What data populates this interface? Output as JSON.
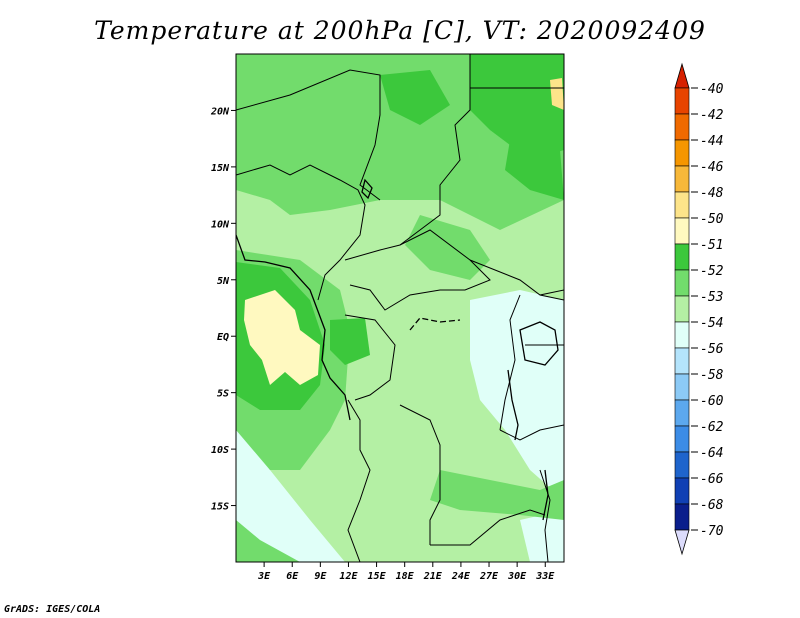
{
  "title": "Temperature at 200hPa [C], VT: 2020092409",
  "credit": "GrADS: IGES/COLA",
  "map": {
    "lon_range": [
      0,
      35
    ],
    "lat_range": [
      -20,
      25
    ],
    "lat_ticks": [
      {
        "value": 20,
        "label": "20N"
      },
      {
        "value": 15,
        "label": "15N"
      },
      {
        "value": 10,
        "label": "10N"
      },
      {
        "value": 5,
        "label": "5N"
      },
      {
        "value": 0,
        "label": "EQ"
      },
      {
        "value": -5,
        "label": "5S"
      },
      {
        "value": -10,
        "label": "10S"
      },
      {
        "value": -15,
        "label": "15S"
      }
    ],
    "lon_ticks": [
      {
        "value": 3,
        "label": "3E"
      },
      {
        "value": 6,
        "label": "6E"
      },
      {
        "value": 9,
        "label": "9E"
      },
      {
        "value": 12,
        "label": "12E"
      },
      {
        "value": 15,
        "label": "15E"
      },
      {
        "value": 18,
        "label": "18E"
      },
      {
        "value": 21,
        "label": "21E"
      },
      {
        "value": 24,
        "label": "24E"
      },
      {
        "value": 27,
        "label": "27E"
      },
      {
        "value": 30,
        "label": "30E"
      },
      {
        "value": 33,
        "label": "33E"
      }
    ]
  },
  "colorbar": {
    "labels": [
      "-40",
      "-42",
      "-44",
      "-46",
      "-48",
      "-50",
      "-51",
      "-52",
      "-53",
      "-54",
      "-56",
      "-58",
      "-60",
      "-62",
      "-64",
      "-66",
      "-68",
      "-70"
    ],
    "colors": [
      "#d62000",
      "#e84400",
      "#f06a00",
      "#f59600",
      "#f7b83a",
      "#fde48a",
      "#fff9c0",
      "#3cc83c",
      "#72dc6c",
      "#b4f0a4",
      "#e0fff8",
      "#b4e4fc",
      "#8ccaf6",
      "#5ca8ee",
      "#3c8ce6",
      "#1e64cc",
      "#1040b4",
      "#0a1e8c",
      "#061060"
    ],
    "top_color": "#d62000",
    "bottom_color": "#dcdcfc"
  },
  "palette": {
    "m52": "#3cc83c",
    "m53": "#72dc6c",
    "m54": "#b4f0a4",
    "m56": "#e0fff8",
    "m50": "#fff9c0",
    "m48": "#fde48a"
  }
}
